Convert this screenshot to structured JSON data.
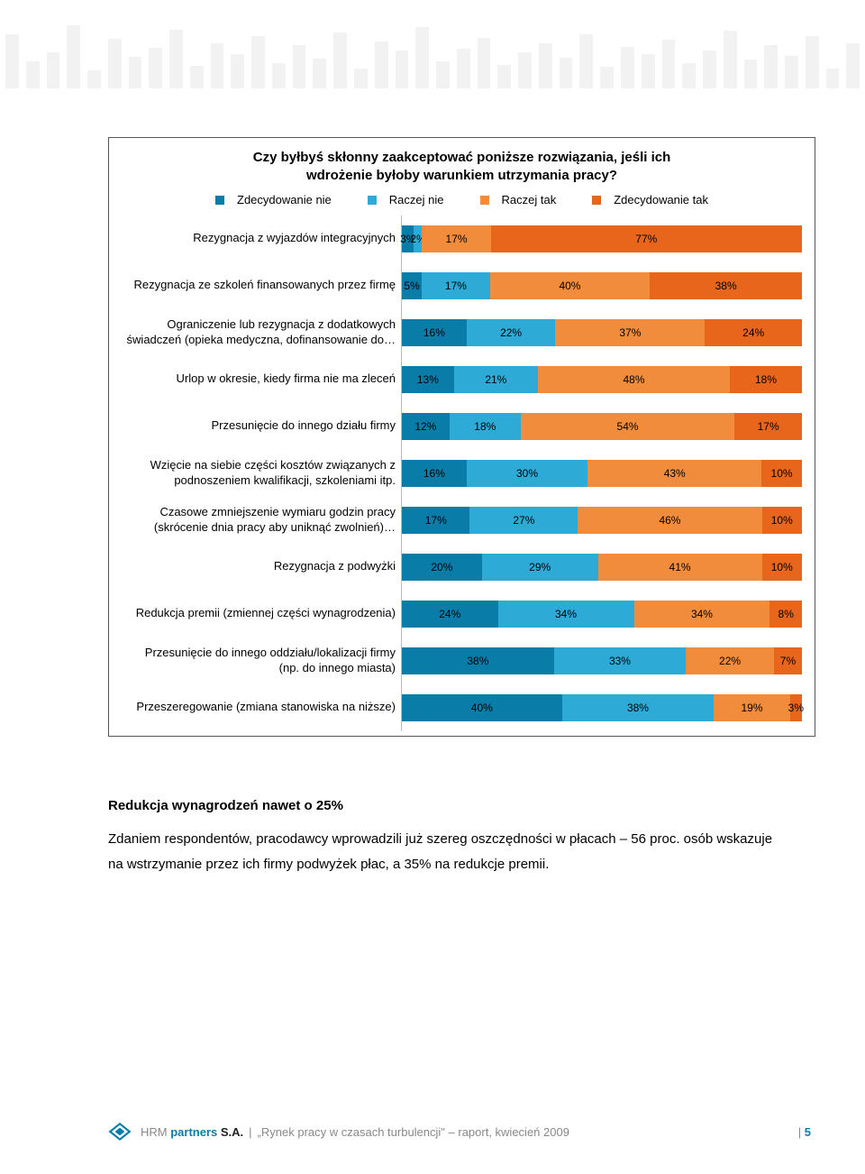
{
  "header_bars": [
    60,
    30,
    40,
    70,
    20,
    55,
    35,
    45,
    65,
    25,
    50,
    38,
    58,
    28,
    48,
    33,
    62,
    22,
    52,
    42,
    68,
    30,
    44,
    56,
    26,
    40,
    50,
    34,
    60,
    24,
    46,
    38,
    54,
    28,
    42,
    64,
    32,
    48,
    36,
    58,
    22,
    50
  ],
  "chart": {
    "title_line1": "Czy byłbyś skłonny zaakceptować poniższe rozwiązania, jeśli ich",
    "title_line2": "wdrożenie byłoby warunkiem utrzymania pracy?",
    "legend": [
      {
        "label": "Zdecydowanie nie",
        "color": "#0a7ca8"
      },
      {
        "label": "Raczej nie",
        "color": "#2daad6"
      },
      {
        "label": "Raczej tak",
        "color": "#f28c3d"
      },
      {
        "label": "Zdecydowanie tak",
        "color": "#e8651c"
      }
    ],
    "rows": [
      {
        "label": "Rezygnacja z wyjazdów integracyjnych",
        "values": [
          3,
          2,
          17,
          77
        ]
      },
      {
        "label": "Rezygnacja ze szkoleń finansowanych przez firmę",
        "values": [
          5,
          17,
          40,
          38
        ]
      },
      {
        "label": "Ograniczenie lub rezygnacja z dodatkowych świadczeń (opieka medyczna, dofinansowanie do…",
        "values": [
          16,
          22,
          37,
          24
        ]
      },
      {
        "label": "Urlop w okresie, kiedy firma nie ma zleceń",
        "values": [
          13,
          21,
          48,
          18
        ]
      },
      {
        "label": "Przesunięcie do innego działu firmy",
        "values": [
          12,
          18,
          54,
          17
        ]
      },
      {
        "label": "Wzięcie na siebie części kosztów związanych z podnoszeniem kwalifikacji, szkoleniami itp.",
        "values": [
          16,
          30,
          43,
          10
        ]
      },
      {
        "label": "Czasowe zmniejszenie wymiaru godzin pracy (skrócenie dnia pracy aby uniknąć zwolnień)…",
        "values": [
          17,
          27,
          46,
          10
        ]
      },
      {
        "label": "Rezygnacja z podwyżki",
        "values": [
          20,
          29,
          41,
          10
        ]
      },
      {
        "label": "Redukcja premii (zmiennej części wynagrodzenia)",
        "values": [
          24,
          34,
          34,
          8
        ]
      },
      {
        "label": "Przesunięcie do innego oddziału/lokalizacji firmy (np. do innego miasta)",
        "values": [
          38,
          33,
          22,
          7
        ]
      },
      {
        "label": "Przeszeregowanie (zmiana stanowiska na niższe)",
        "values": [
          40,
          38,
          19,
          3
        ]
      }
    ],
    "value_label_fontsize": 12,
    "label_fontsize": 13
  },
  "body": {
    "heading": "Redukcja wynagrodzeń nawet o 25%",
    "para": "Zdaniem respondentów, pracodawcy wprowadzili już szereg oszczędności w płacach – 56 proc. osób wskazuje na wstrzymanie przez ich firmy podwyżek płac, a 35% na redukcje premii."
  },
  "footer": {
    "brand_hrm": "HRM ",
    "brand_partners": "partners",
    "brand_sa": " S.A.",
    "doc": "„Rynek pracy w czasach turbulencji\" – raport, kwiecień 2009",
    "page": "5"
  }
}
